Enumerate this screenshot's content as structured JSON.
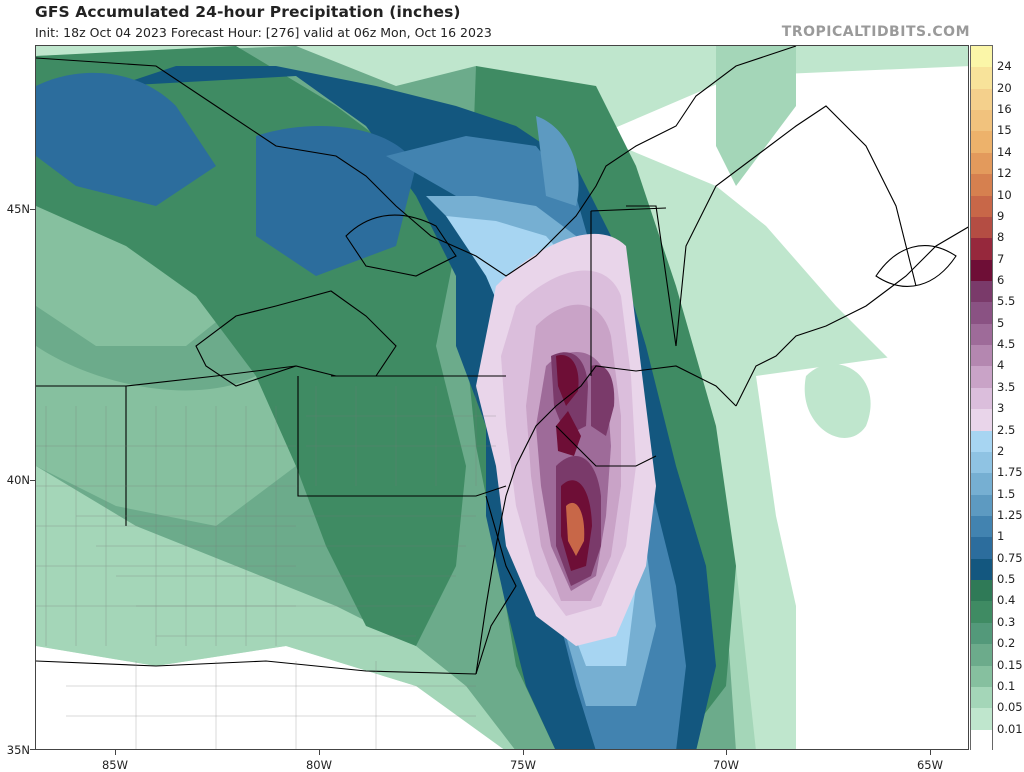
{
  "header": {
    "title": "GFS Accumulated 24-hour Precipitation (inches)",
    "subtitle": "Init: 18z Oct 04 2023   Forecast Hour: [276]   valid at 06z Mon, Oct 16 2023",
    "credit": "TROPICALTIDBITS.COM"
  },
  "axes": {
    "lat_labels": [
      "45N",
      "40N",
      "35N"
    ],
    "lon_labels": [
      "85W",
      "80W",
      "75W",
      "70W",
      "65W"
    ]
  },
  "legend": {
    "labels": [
      "24",
      "20",
      "16",
      "15",
      "14",
      "12",
      "10",
      "9",
      "8",
      "7",
      "6",
      "5.5",
      "5",
      "4.5",
      "4",
      "3.5",
      "3",
      "2.5",
      "2",
      "1.75",
      "1.5",
      "1.25",
      "1",
      "0.75",
      "0.5",
      "0.4",
      "0.3",
      "0.2",
      "0.15",
      "0.1",
      "0.05",
      "0.01"
    ],
    "colors": [
      "#fbf6a8",
      "#f8e39a",
      "#f4d08c",
      "#f1c27d",
      "#edb26b",
      "#e39a5c",
      "#d6804f",
      "#c86748",
      "#b44d43",
      "#96283c",
      "#6e0e36",
      "#7a3a6a",
      "#8a5283",
      "#9e6b99",
      "#b487b0",
      "#c9a3c7",
      "#dbbedc",
      "#e9d5ea",
      "#a7d5f2",
      "#8fc3e3",
      "#76afd2",
      "#5d9ac1",
      "#4283b0",
      "#2c6d9d",
      "#13577f",
      "#2f7a57",
      "#3f8b63",
      "#53997a",
      "#6cab8b",
      "#86c09f",
      "#a4d6b8",
      "#bfe6cd"
    ],
    "lowest_color": "#ffffff"
  },
  "map": {
    "region": "Northeastern United States and Atlantic Canada",
    "colors": {
      "land_low": "#bfe6cd",
      "light_green": "#a4d6b8",
      "green": "#6cab8b",
      "dark_green": "#3f8b63",
      "deep_green": "#2f7a57",
      "teal": "#2c6d9d",
      "blue": "#13577f",
      "light_blue": "#76afd2",
      "pale_blue": "#a7d5f2",
      "pink": "#e9d5ea",
      "lilac": "#c9a3c7",
      "mauve": "#9e6b99",
      "plum": "#7a3a6a",
      "maroon": "#6e0e36",
      "orange_core": "#c86748",
      "border": "#000000",
      "county": "#777777"
    }
  }
}
